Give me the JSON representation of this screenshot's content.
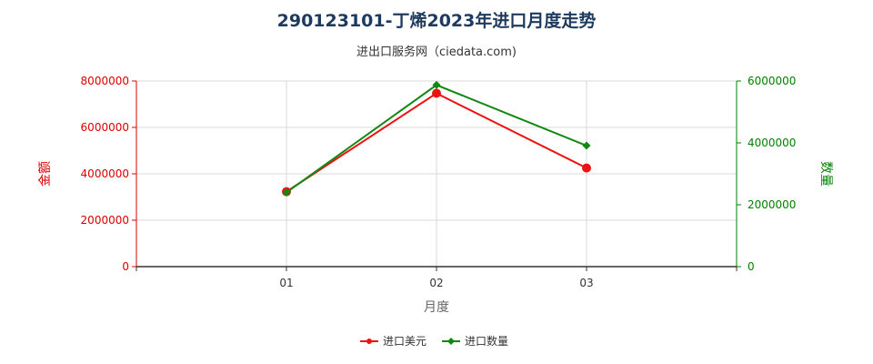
{
  "chart_data": {
    "type": "line",
    "title": "290123101-丁烯2023年进口月度走势",
    "subtitle": "进出口服务网（ciedata.com)",
    "xlabel": "月度",
    "ylabel_left": "金额",
    "ylabel_right": "数量",
    "categories": [
      "01",
      "02",
      "03"
    ],
    "ylim_left": [
      0,
      8000000
    ],
    "ylim_right": [
      0,
      6000000
    ],
    "yticks_left": [
      "0",
      "2000000",
      "4000000",
      "6000000",
      "8000000"
    ],
    "yticks_right": [
      "0",
      "2000000",
      "4000000",
      "6000000"
    ],
    "grid": true,
    "legend_position": "bottom",
    "series": [
      {
        "name": "进口美元",
        "axis": "left",
        "color": "#ee1111",
        "marker": "circle",
        "values": [
          3230000,
          7470000,
          4250000
        ]
      },
      {
        "name": "进口数量",
        "axis": "right",
        "color": "#118811",
        "marker": "diamond",
        "values": [
          2400000,
          5870000,
          3910000
        ]
      }
    ]
  }
}
